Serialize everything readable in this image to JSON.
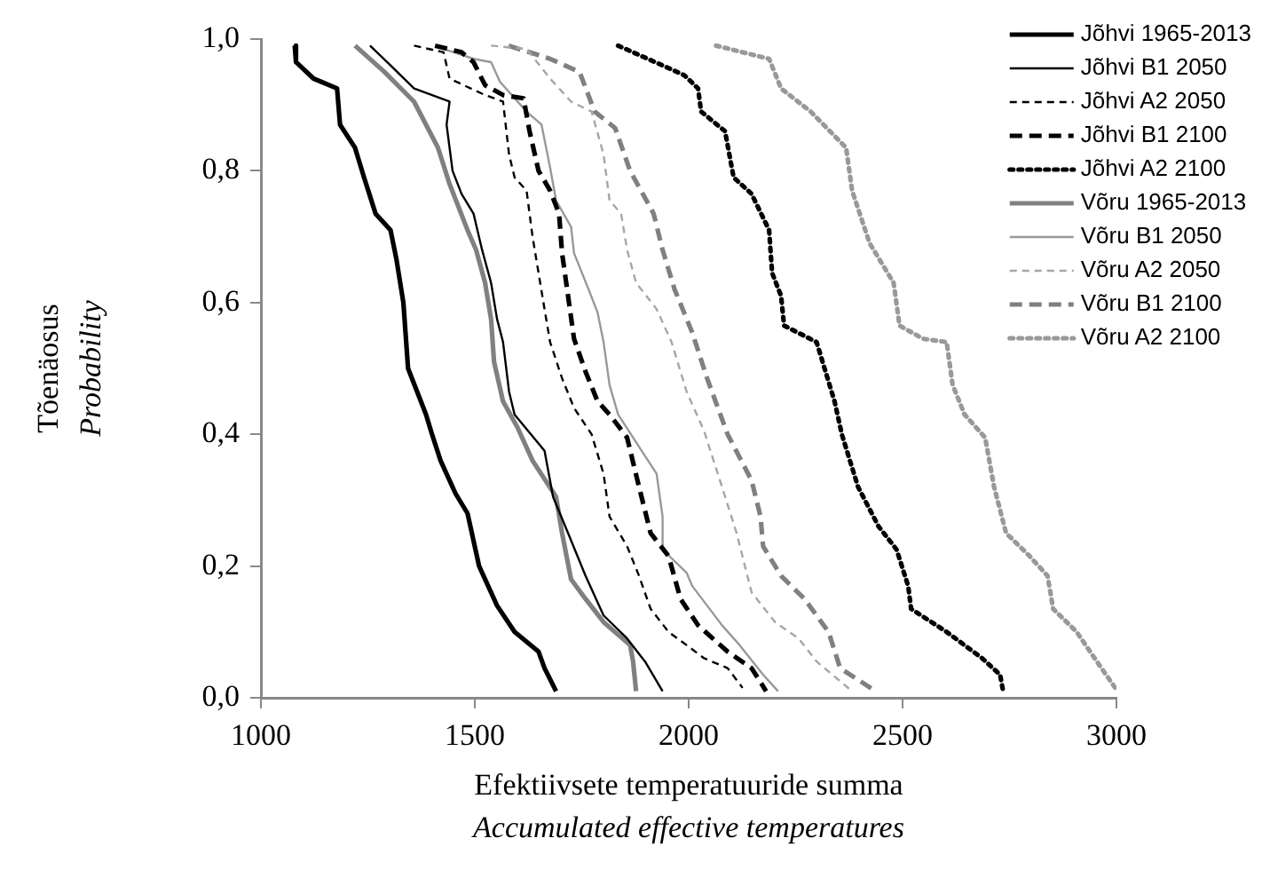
{
  "chart_data": {
    "type": "line",
    "xlabel": "Efektiivsete temperatuuride summa\nAccumulated effective temperatures",
    "ylabel": "Tõenäosus\nProbability",
    "xlim": [
      1000,
      3000
    ],
    "xticks": [
      1000,
      1500,
      2000,
      2500,
      3000
    ],
    "ylim": [
      0,
      1
    ],
    "yticks": [
      {
        "value": 0,
        "label": "0,0"
      },
      {
        "value": 0.2,
        "label": "0,2"
      },
      {
        "value": 0.4,
        "label": "0,4"
      },
      {
        "value": 0.6,
        "label": "0,6"
      },
      {
        "value": 0.8,
        "label": "0,8"
      },
      {
        "value": 1,
        "label": "1,0"
      }
    ],
    "grid": false,
    "legend": "top right",
    "marker": "none",
    "series": [
      {
        "name": "Jõhvi 1965-2013",
        "color": "#000000",
        "line_style": "solid",
        "x": [
          1079,
          1082,
          1123,
          1178,
          1185,
          1220,
          1241,
          1268,
          1303,
          1317,
          1333,
          1344,
          1365,
          1386,
          1400,
          1420,
          1455,
          1483,
          1510,
          1552,
          1593,
          1649,
          1663,
          1690
        ],
        "values": [
          0.99,
          0.965,
          0.94,
          0.925,
          0.87,
          0.835,
          0.79,
          0.735,
          0.71,
          0.665,
          0.6,
          0.5,
          0.465,
          0.43,
          0.4,
          0.36,
          0.31,
          0.28,
          0.2,
          0.14,
          0.1,
          0.07,
          0.045,
          0.01
        ]
      },
      {
        "name": "Jõhvi B1 2050",
        "color": "#000000",
        "line_style": "solid",
        "x": [
          1255,
          1303,
          1358,
          1441,
          1434,
          1448,
          1469,
          1497,
          1517,
          1538,
          1552,
          1566,
          1580,
          1593,
          1663,
          1683,
          1718,
          1759,
          1801,
          1856,
          1898,
          1939
        ],
        "values": [
          0.99,
          0.96,
          0.925,
          0.905,
          0.87,
          0.8,
          0.765,
          0.735,
          0.68,
          0.63,
          0.575,
          0.54,
          0.465,
          0.43,
          0.375,
          0.305,
          0.25,
          0.185,
          0.125,
          0.09,
          0.055,
          0.01
        ]
      },
      {
        "name": "Jõhvi A2 2050",
        "color": "#000000",
        "line_style": "dashed",
        "x": [
          1358,
          1427,
          1441,
          1524,
          1566,
          1580,
          1593,
          1621,
          1635,
          1649,
          1663,
          1676,
          1704,
          1732,
          1773,
          1801,
          1815,
          1856,
          1884,
          1911,
          1953,
          1995,
          2036,
          2091,
          2126
        ],
        "values": [
          0.99,
          0.98,
          0.94,
          0.915,
          0.905,
          0.825,
          0.79,
          0.77,
          0.7,
          0.645,
          0.59,
          0.54,
          0.485,
          0.44,
          0.4,
          0.34,
          0.275,
          0.23,
          0.185,
          0.135,
          0.1,
          0.08,
          0.06,
          0.045,
          0.015
        ]
      },
      {
        "name": "Jõhvi B1 2100",
        "color": "#000000",
        "line_style": "dashed",
        "x": [
          1407,
          1469,
          1497,
          1524,
          1566,
          1614,
          1628,
          1649,
          1676,
          1697,
          1704,
          1718,
          1732,
          1759,
          1787,
          1815,
          1856,
          1884,
          1911,
          1953,
          1981,
          2022,
          2091,
          2147,
          2181
        ],
        "values": [
          0.99,
          0.98,
          0.965,
          0.93,
          0.915,
          0.91,
          0.86,
          0.8,
          0.77,
          0.735,
          0.675,
          0.61,
          0.545,
          0.495,
          0.45,
          0.43,
          0.395,
          0.32,
          0.25,
          0.215,
          0.15,
          0.11,
          0.07,
          0.045,
          0.01
        ]
      },
      {
        "name": "Jõhvi A2 2100",
        "color": "#000000",
        "line_style": "dotted",
        "x": [
          1835,
          1939,
          1990,
          2022,
          2029,
          2085,
          2105,
          2147,
          2188,
          2195,
          2216,
          2223,
          2299,
          2320,
          2341,
          2358,
          2396,
          2444,
          2486,
          2513,
          2520,
          2603,
          2686,
          2728,
          2735
        ],
        "values": [
          0.99,
          0.96,
          0.945,
          0.925,
          0.89,
          0.86,
          0.79,
          0.765,
          0.71,
          0.645,
          0.61,
          0.565,
          0.54,
          0.495,
          0.45,
          0.4,
          0.32,
          0.26,
          0.225,
          0.17,
          0.135,
          0.1,
          0.06,
          0.035,
          0.01
        ]
      },
      {
        "name": "Võru 1965-2013",
        "color": "#808080",
        "line_style": "solid",
        "x": [
          1220,
          1289,
          1358,
          1414,
          1441,
          1483,
          1503,
          1524,
          1538,
          1545,
          1566,
          1600,
          1635,
          1690,
          1704,
          1725,
          1759,
          1801,
          1863,
          1870,
          1877
        ],
        "values": [
          0.99,
          0.95,
          0.905,
          0.835,
          0.78,
          0.71,
          0.68,
          0.63,
          0.575,
          0.51,
          0.45,
          0.41,
          0.36,
          0.305,
          0.25,
          0.18,
          0.15,
          0.115,
          0.08,
          0.055,
          0.01
        ]
      },
      {
        "name": "Võru B1 2050",
        "color": "#999999",
        "line_style": "solid",
        "x": [
          1427,
          1497,
          1538,
          1559,
          1621,
          1656,
          1676,
          1690,
          1725,
          1732,
          1766,
          1787,
          1801,
          1815,
          1835,
          1870,
          1925,
          1939,
          1939,
          1995,
          2008,
          2078,
          2119,
          2174,
          2209
        ],
        "values": [
          0.985,
          0.97,
          0.965,
          0.935,
          0.89,
          0.87,
          0.805,
          0.755,
          0.715,
          0.675,
          0.62,
          0.585,
          0.54,
          0.475,
          0.43,
          0.395,
          0.34,
          0.275,
          0.225,
          0.19,
          0.17,
          0.11,
          0.08,
          0.035,
          0.01
        ]
      },
      {
        "name": "Võru A2 2050",
        "color": "#a6a6a6",
        "line_style": "dashed",
        "x": [
          1538,
          1621,
          1676,
          1725,
          1773,
          1801,
          1815,
          1842,
          1856,
          1877,
          1925,
          1960,
          1995,
          2036,
          2078,
          2112,
          2147,
          2202,
          2257,
          2299,
          2382
        ],
        "values": [
          0.99,
          0.985,
          0.94,
          0.905,
          0.89,
          0.825,
          0.755,
          0.735,
          0.68,
          0.63,
          0.59,
          0.54,
          0.465,
          0.405,
          0.32,
          0.25,
          0.16,
          0.115,
          0.09,
          0.055,
          0.01
        ]
      },
      {
        "name": "Võru B1 2100",
        "color": "#808080",
        "line_style": "dashed",
        "x": [
          1579,
          1676,
          1745,
          1780,
          1828,
          1863,
          1918,
          1939,
          1967,
          2008,
          2043,
          2091,
          2147,
          2168,
          2174,
          2216,
          2271,
          2327,
          2354,
          2437
        ],
        "values": [
          0.99,
          0.97,
          0.95,
          0.89,
          0.865,
          0.8,
          0.735,
          0.68,
          0.62,
          0.555,
          0.485,
          0.4,
          0.33,
          0.275,
          0.23,
          0.185,
          0.15,
          0.1,
          0.045,
          0.01
        ]
      },
      {
        "name": "Võru A2 2100",
        "color": "#999999",
        "line_style": "dotted",
        "x": [
          2064,
          2188,
          2216,
          2285,
          2368,
          2382,
          2423,
          2479,
          2493,
          2548,
          2603,
          2617,
          2645,
          2693,
          2714,
          2742,
          2797,
          2839,
          2852,
          2907,
          2949,
          2997
        ],
        "values": [
          0.99,
          0.97,
          0.925,
          0.89,
          0.835,
          0.77,
          0.69,
          0.63,
          0.565,
          0.545,
          0.54,
          0.475,
          0.43,
          0.395,
          0.32,
          0.25,
          0.215,
          0.185,
          0.135,
          0.1,
          0.06,
          0.015
        ]
      }
    ]
  }
}
